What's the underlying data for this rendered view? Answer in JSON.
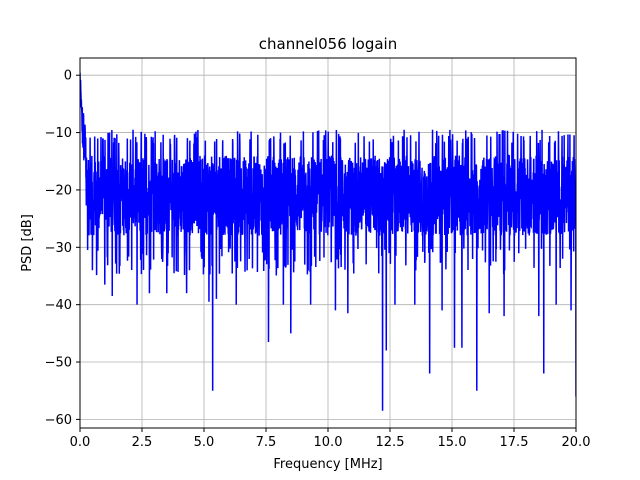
{
  "chart_data": {
    "type": "line",
    "title": "channel056 logain",
    "xlabel": "Frequency [MHz]",
    "ylabel": "PSD [dB]",
    "xlim": [
      0,
      20
    ],
    "ylim": [
      -61.5,
      3
    ],
    "grid": true,
    "x_ticks": [
      0,
      2.5,
      5,
      7.5,
      10,
      12.5,
      15,
      17.5,
      20
    ],
    "x_tick_labels": [
      "0.0",
      "2.5",
      "5.0",
      "7.5",
      "10.0",
      "12.5",
      "15.0",
      "17.5",
      "20.0"
    ],
    "y_ticks": [
      0,
      -10,
      -20,
      -30,
      -40,
      -50,
      -60
    ],
    "y_tick_labels": [
      "0",
      "−10",
      "−20",
      "−30",
      "−40",
      "−50",
      "−60"
    ],
    "series": [
      {
        "color": "#0000ff",
        "baseline_db": -21,
        "peak_db": 0,
        "deep_nulls": [
          {
            "x": 0.5,
            "y": -34
          },
          {
            "x": 1.0,
            "y": -36.5
          },
          {
            "x": 1.3,
            "y": -38.5
          },
          {
            "x": 2.3,
            "y": -40
          },
          {
            "x": 2.8,
            "y": -38
          },
          {
            "x": 3.5,
            "y": -38
          },
          {
            "x": 4.3,
            "y": -38
          },
          {
            "x": 5.2,
            "y": -39.5
          },
          {
            "x": 5.35,
            "y": -55
          },
          {
            "x": 5.5,
            "y": -39
          },
          {
            "x": 6.3,
            "y": -40
          },
          {
            "x": 7.6,
            "y": -46.5
          },
          {
            "x": 8.2,
            "y": -40
          },
          {
            "x": 8.5,
            "y": -45
          },
          {
            "x": 9.3,
            "y": -40
          },
          {
            "x": 10.3,
            "y": -41
          },
          {
            "x": 10.8,
            "y": -41.5
          },
          {
            "x": 12.2,
            "y": -58.5
          },
          {
            "x": 12.35,
            "y": -48
          },
          {
            "x": 12.7,
            "y": -40
          },
          {
            "x": 13.5,
            "y": -40
          },
          {
            "x": 14.1,
            "y": -52
          },
          {
            "x": 14.6,
            "y": -41
          },
          {
            "x": 15.1,
            "y": -47.5
          },
          {
            "x": 15.4,
            "y": -47.5
          },
          {
            "x": 16.0,
            "y": -55
          },
          {
            "x": 16.5,
            "y": -41.5
          },
          {
            "x": 17.1,
            "y": -42
          },
          {
            "x": 18.5,
            "y": -42
          },
          {
            "x": 18.7,
            "y": -52
          },
          {
            "x": 19.2,
            "y": -40
          },
          {
            "x": 19.8,
            "y": -41
          },
          {
            "x": 20.0,
            "y": -56
          }
        ]
      }
    ]
  }
}
